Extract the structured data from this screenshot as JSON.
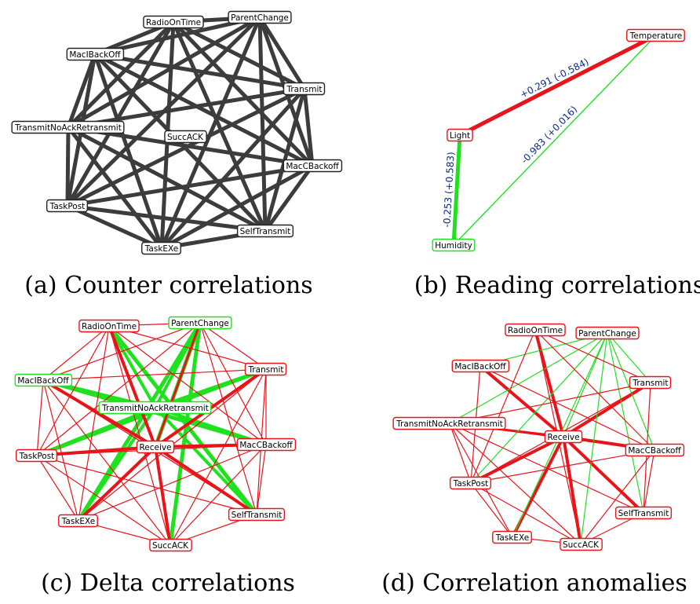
{
  "colors": {
    "counter_edge": "#3c3c3c",
    "positive_edge": "#e8141a",
    "negative_edge": "#1fe21f",
    "node_red_border": "#e8141a",
    "node_green_border": "#1fe21f",
    "node_black_border": "#222222",
    "edge_label_text": "#0b2a8a"
  },
  "panels": [
    {
      "id": "a",
      "caption": "(a) Counter correlations",
      "nodes": [
        {
          "id": "ROT",
          "label": "RadioOnTime",
          "border": "black"
        },
        {
          "id": "PC",
          "label": "ParentChange",
          "border": "black"
        },
        {
          "id": "MBO",
          "label": "MacIBackOff",
          "border": "black"
        },
        {
          "id": "TR",
          "label": "Transmit",
          "border": "black"
        },
        {
          "id": "TNAR",
          "label": "TransmitNoAckRetransmit",
          "border": "black"
        },
        {
          "id": "SA",
          "label": "SuccACK",
          "border": "black"
        },
        {
          "id": "MCB",
          "label": "MacCBackoff",
          "border": "black"
        },
        {
          "id": "TP",
          "label": "TaskPost",
          "border": "black"
        },
        {
          "id": "ST",
          "label": "SelfTransmit",
          "border": "black"
        },
        {
          "id": "TE",
          "label": "TaskEXe",
          "border": "black"
        }
      ],
      "edges": [
        [
          "ROT",
          "PC",
          "counter",
          5
        ],
        [
          "ROT",
          "MBO",
          "counter",
          5
        ],
        [
          "ROT",
          "TR",
          "counter",
          5
        ],
        [
          "ROT",
          "TNAR",
          "counter",
          5
        ],
        [
          "ROT",
          "MCB",
          "counter",
          5
        ],
        [
          "ROT",
          "TP",
          "counter",
          5
        ],
        [
          "ROT",
          "ST",
          "counter",
          5
        ],
        [
          "ROT",
          "TE",
          "counter",
          5
        ],
        [
          "PC",
          "MBO",
          "counter",
          5
        ],
        [
          "PC",
          "TR",
          "counter",
          5
        ],
        [
          "PC",
          "TNAR",
          "counter",
          5
        ],
        [
          "PC",
          "MCB",
          "counter",
          5
        ],
        [
          "PC",
          "TP",
          "counter",
          5
        ],
        [
          "PC",
          "ST",
          "counter",
          5
        ],
        [
          "PC",
          "TE",
          "counter",
          5
        ],
        [
          "MBO",
          "TR",
          "counter",
          5
        ],
        [
          "MBO",
          "TNAR",
          "counter",
          5
        ],
        [
          "MBO",
          "MCB",
          "counter",
          5
        ],
        [
          "MBO",
          "TP",
          "counter",
          5
        ],
        [
          "MBO",
          "ST",
          "counter",
          5
        ],
        [
          "MBO",
          "TE",
          "counter",
          5
        ],
        [
          "TR",
          "TNAR",
          "counter",
          5
        ],
        [
          "TR",
          "MCB",
          "counter",
          5
        ],
        [
          "TR",
          "TP",
          "counter",
          5
        ],
        [
          "TR",
          "ST",
          "counter",
          5
        ],
        [
          "TR",
          "TE",
          "counter",
          5
        ],
        [
          "TNAR",
          "MCB",
          "counter",
          5
        ],
        [
          "TNAR",
          "TP",
          "counter",
          5
        ],
        [
          "TNAR",
          "ST",
          "counter",
          5
        ],
        [
          "TNAR",
          "TE",
          "counter",
          5
        ],
        [
          "MCB",
          "TP",
          "counter",
          5
        ],
        [
          "MCB",
          "ST",
          "counter",
          5
        ],
        [
          "MCB",
          "TE",
          "counter",
          5
        ],
        [
          "TP",
          "ST",
          "counter",
          5
        ],
        [
          "TP",
          "TE",
          "counter",
          5
        ],
        [
          "ST",
          "TE",
          "counter",
          5
        ]
      ]
    },
    {
      "id": "b",
      "caption": "(b) Reading correlations",
      "nodes": [
        {
          "id": "TEMP",
          "label": "Temperature",
          "border": "red"
        },
        {
          "id": "LIGHT",
          "label": "Light",
          "border": "red"
        },
        {
          "id": "HUM",
          "label": "Humidity",
          "border": "green"
        }
      ],
      "edges": [
        [
          "LIGHT",
          "TEMP",
          "pos",
          5,
          "+0.291 (-0.584)"
        ],
        [
          "HUM",
          "TEMP",
          "neg",
          1.4,
          "-0.983 (+0.016)"
        ],
        [
          "HUM",
          "LIGHT",
          "neg",
          5,
          "-0.253 (+0.583)"
        ]
      ]
    },
    {
      "id": "c",
      "caption": "(c) Delta correlations",
      "nodes": [
        {
          "id": "ROT",
          "label": "RadioOnTime",
          "border": "red"
        },
        {
          "id": "PC",
          "label": "ParentChange",
          "border": "green"
        },
        {
          "id": "TR",
          "label": "Transmit",
          "border": "red"
        },
        {
          "id": "MBO",
          "label": "MacIBackOff",
          "border": "green"
        },
        {
          "id": "TNAR",
          "label": "TransmitNoAckRetransmit",
          "border": "green"
        },
        {
          "id": "RCV",
          "label": "Receive",
          "border": "red"
        },
        {
          "id": "MCB",
          "label": "MacCBackoff",
          "border": "red"
        },
        {
          "id": "TP",
          "label": "TaskPost",
          "border": "red"
        },
        {
          "id": "ST",
          "label": "SelfTransmit",
          "border": "red"
        },
        {
          "id": "TE",
          "label": "TaskEXe",
          "border": "red"
        },
        {
          "id": "SA",
          "label": "SuccACK",
          "border": "red"
        }
      ],
      "edges": [
        [
          "PC",
          "TE",
          "neg",
          5
        ],
        [
          "PC",
          "SA",
          "neg",
          5
        ],
        [
          "PC",
          "RCV",
          "neg",
          5
        ],
        [
          "PC",
          "TNAR",
          "neg",
          4
        ],
        [
          "ROT",
          "ST",
          "neg",
          5
        ],
        [
          "ROT",
          "TNAR",
          "neg",
          4
        ],
        [
          "MBO",
          "MCB",
          "neg",
          5
        ],
        [
          "MBO",
          "TNAR",
          "neg",
          4
        ],
        [
          "TR",
          "TP",
          "neg",
          5
        ],
        [
          "TR",
          "TNAR",
          "neg",
          4
        ],
        [
          "TNAR",
          "MCB",
          "neg",
          4
        ],
        [
          "TNAR",
          "ST",
          "neg",
          4
        ],
        [
          "TNAR",
          "TE",
          "neg",
          4
        ],
        [
          "TNAR",
          "TP",
          "neg",
          4
        ],
        [
          "ROT",
          "RCV",
          "pos",
          4
        ],
        [
          "PC",
          "RCV",
          "pos",
          3
        ],
        [
          "MBO",
          "RCV",
          "pos",
          4
        ],
        [
          "TR",
          "RCV",
          "pos",
          4
        ],
        [
          "TP",
          "RCV",
          "pos",
          4
        ],
        [
          "MCB",
          "RCV",
          "pos",
          4
        ],
        [
          "ST",
          "RCV",
          "pos",
          4
        ],
        [
          "TE",
          "RCV",
          "pos",
          4
        ],
        [
          "SA",
          "RCV",
          "pos",
          4
        ],
        [
          "ROT",
          "PC",
          "pos",
          1.2
        ],
        [
          "ROT",
          "MBO",
          "pos",
          1.2
        ],
        [
          "ROT",
          "TR",
          "pos",
          1.2
        ],
        [
          "ROT",
          "TP",
          "pos",
          1.2
        ],
        [
          "ROT",
          "MCB",
          "pos",
          1.2
        ],
        [
          "ROT",
          "TE",
          "pos",
          1.2
        ],
        [
          "ROT",
          "SA",
          "pos",
          1.2
        ],
        [
          "PC",
          "TR",
          "pos",
          1.2
        ],
        [
          "PC",
          "MBO",
          "pos",
          1.2
        ],
        [
          "PC",
          "TP",
          "pos",
          1.2
        ],
        [
          "PC",
          "MCB",
          "pos",
          1.2
        ],
        [
          "PC",
          "ST",
          "pos",
          1.2
        ],
        [
          "TR",
          "MBO",
          "pos",
          1.2
        ],
        [
          "TR",
          "MCB",
          "pos",
          1.2
        ],
        [
          "TR",
          "ST",
          "pos",
          1.2
        ],
        [
          "TR",
          "TE",
          "pos",
          1.2
        ],
        [
          "TR",
          "SA",
          "pos",
          1.2
        ],
        [
          "MBO",
          "TP",
          "pos",
          1.2
        ],
        [
          "MBO",
          "TE",
          "pos",
          1.2
        ],
        [
          "MBO",
          "SA",
          "pos",
          1.2
        ],
        [
          "MBO",
          "ST",
          "pos",
          1.2
        ],
        [
          "TP",
          "TE",
          "pos",
          1.2
        ],
        [
          "TP",
          "SA",
          "pos",
          1.2
        ],
        [
          "TP",
          "MCB",
          "pos",
          1.2
        ],
        [
          "TP",
          "ST",
          "pos",
          1.2
        ],
        [
          "MCB",
          "ST",
          "pos",
          1.2
        ],
        [
          "MCB",
          "SA",
          "pos",
          1.2
        ],
        [
          "MCB",
          "TE",
          "pos",
          1.2
        ],
        [
          "ST",
          "SA",
          "pos",
          1.2
        ],
        [
          "TE",
          "SA",
          "pos",
          1.2
        ]
      ]
    },
    {
      "id": "d",
      "caption": "(d) Correlation anomalies",
      "nodes": [
        {
          "id": "ROT",
          "label": "RadioOnTime",
          "border": "red"
        },
        {
          "id": "PC",
          "label": "ParentChange",
          "border": "red"
        },
        {
          "id": "MBO",
          "label": "MacIBackOff",
          "border": "red"
        },
        {
          "id": "TR",
          "label": "Transmit",
          "border": "red"
        },
        {
          "id": "TNAR",
          "label": "TransmitNoAckRetransmit",
          "border": "red"
        },
        {
          "id": "RCV",
          "label": "Receive",
          "border": "red"
        },
        {
          "id": "MCB",
          "label": "MacCBackoff",
          "border": "red"
        },
        {
          "id": "TP",
          "label": "TaskPost",
          "border": "red"
        },
        {
          "id": "ST",
          "label": "SelfTransmit",
          "border": "red"
        },
        {
          "id": "TE",
          "label": "TaskEXe",
          "border": "red"
        },
        {
          "id": "SA",
          "label": "SuccACK",
          "border": "red"
        }
      ],
      "edges": [
        [
          "ROT",
          "RCV",
          "pos",
          4
        ],
        [
          "MBO",
          "RCV",
          "pos",
          4
        ],
        [
          "TR",
          "RCV",
          "pos",
          4
        ],
        [
          "TNAR",
          "RCV",
          "pos",
          3
        ],
        [
          "TP",
          "RCV",
          "pos",
          4
        ],
        [
          "MCB",
          "RCV",
          "pos",
          4
        ],
        [
          "ST",
          "RCV",
          "pos",
          4
        ],
        [
          "TE",
          "RCV",
          "pos",
          4
        ],
        [
          "SA",
          "RCV",
          "pos",
          4
        ],
        [
          "PC",
          "MBO",
          "neg",
          1.2
        ],
        [
          "PC",
          "TNAR",
          "neg",
          1.2
        ],
        [
          "PC",
          "TP",
          "neg",
          1.2
        ],
        [
          "PC",
          "TE",
          "neg",
          1.2
        ],
        [
          "PC",
          "SA",
          "neg",
          1.2
        ],
        [
          "PC",
          "ST",
          "neg",
          1.2
        ],
        [
          "PC",
          "MCB",
          "neg",
          1.2
        ],
        [
          "PC",
          "TR",
          "neg",
          1.2
        ],
        [
          "PC",
          "RCV",
          "neg",
          1.2
        ],
        [
          "ROT",
          "TR",
          "pos",
          1.2
        ],
        [
          "ROT",
          "MCB",
          "pos",
          1.2
        ],
        [
          "ROT",
          "TP",
          "pos",
          1.2
        ],
        [
          "ROT",
          "SA",
          "pos",
          1.2
        ],
        [
          "TR",
          "TNAR",
          "pos",
          1.2
        ],
        [
          "TR",
          "TP",
          "pos",
          1.2
        ],
        [
          "TR",
          "ST",
          "pos",
          1.2
        ],
        [
          "MBO",
          "MCB",
          "pos",
          1.2
        ],
        [
          "MBO",
          "TP",
          "pos",
          1.2
        ],
        [
          "TNAR",
          "TP",
          "pos",
          1.2
        ],
        [
          "TNAR",
          "TE",
          "pos",
          1.2
        ],
        [
          "TNAR",
          "SA",
          "pos",
          1.2
        ],
        [
          "TNAR",
          "ST",
          "pos",
          1.2
        ],
        [
          "TNAR",
          "MCB",
          "pos",
          1.2
        ],
        [
          "TP",
          "MCB",
          "pos",
          1.2
        ],
        [
          "TP",
          "TE",
          "pos",
          1.2
        ],
        [
          "TP",
          "SA",
          "pos",
          1.2
        ],
        [
          "MCB",
          "ST",
          "pos",
          1.2
        ],
        [
          "MCB",
          "SA",
          "pos",
          1.2
        ],
        [
          "ST",
          "SA",
          "pos",
          1.2
        ],
        [
          "TE",
          "SA",
          "pos",
          1.2
        ]
      ]
    }
  ]
}
